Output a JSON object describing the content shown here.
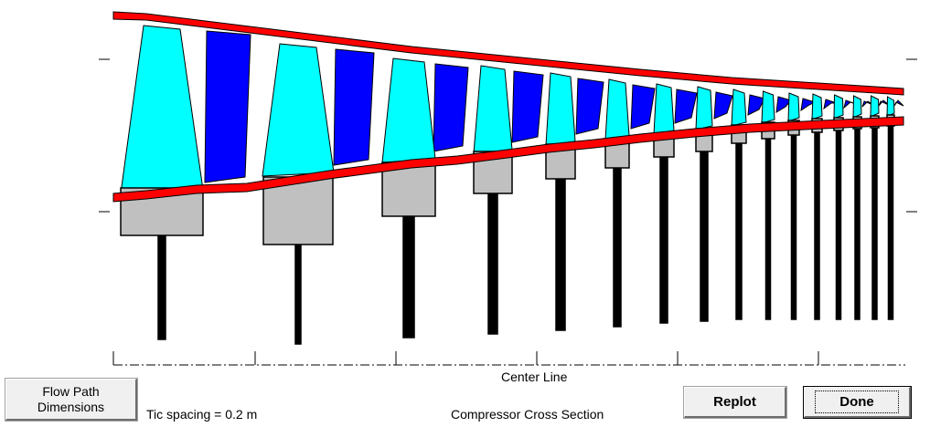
{
  "title": "Compressor Cross Section",
  "center_line_label": "Center Line",
  "tic_spacing_label": "Tic spacing = 0.2 m",
  "buttons": {
    "flow_path_line1": "Flow Path",
    "flow_path_line2": "Dimensions",
    "replot": "Replot",
    "done": "Done"
  },
  "colors": {
    "casing": "#ff0000",
    "hub": "#ff0000",
    "rotor_blade": "#00ffff",
    "stator_vane": "#0000ff",
    "disk": "#c0c0c0",
    "outline": "#000000"
  }
}
